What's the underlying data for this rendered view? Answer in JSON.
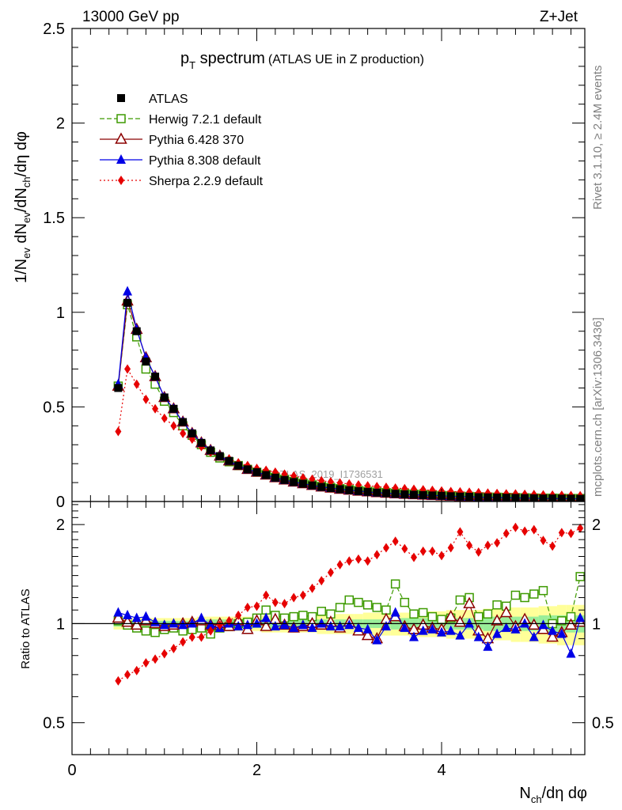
{
  "header": {
    "left": "13000 GeV pp",
    "right": "Z+Jet"
  },
  "title": {
    "main": "p",
    "sub": "T",
    "rest": " spectrum",
    "note": "(ATLAS UE in Z production)"
  },
  "watermark": "ATLAS_2019_I1736531",
  "side_labels": {
    "top": "Rivet 3.1.10, ≥ 2.4M events",
    "bottom": "mcplots.cern.ch [arXiv:1306.3436]"
  },
  "axis_titles": {
    "y_main": {
      "a": "1/N",
      "a_sub": "ev",
      "b": " dN",
      "b_sub": "ev",
      "c": "/dN",
      "c_sub": "ch",
      "d": "/dη dφ"
    },
    "y_ratio": "Ratio to ATLAS",
    "x": {
      "a": "N",
      "a_sub": "ch",
      "b": "/dη dφ"
    }
  },
  "legend": [
    {
      "label": "ATLAS",
      "color": "#000000",
      "marker": "filled-square",
      "line": "none"
    },
    {
      "label": "Herwig 7.2.1 default",
      "color": "#3d9a00",
      "marker": "open-square",
      "line": "dashed"
    },
    {
      "label": "Pythia 6.428 370",
      "color": "#8b0000",
      "marker": "open-triangle",
      "line": "solid"
    },
    {
      "label": "Pythia 8.308 default",
      "color": "#0000e6",
      "marker": "filled-triangle",
      "line": "solid"
    },
    {
      "label": "Sherpa 2.2.9 default",
      "color": "#e60000",
      "marker": "filled-diamond",
      "line": "dotted"
    }
  ],
  "chart_data": [
    {
      "type": "line",
      "title": "pT spectrum (ATLAS UE in Z production)",
      "xlabel": "Nch/dη dφ",
      "ylabel": "1/Nev dNev/dNch/dη dφ",
      "xlim": [
        0,
        5.55
      ],
      "ylim": [
        0,
        2.5
      ],
      "x_ticks": [
        0,
        2,
        4
      ],
      "y_ticks": [
        0,
        0.5,
        1,
        1.5,
        2,
        2.5
      ],
      "y_tick_labels": [
        "0",
        "0.5",
        "1",
        "1.5",
        "2",
        "2.5"
      ],
      "x": [
        0.5,
        0.6,
        0.7,
        0.8,
        0.9,
        1.0,
        1.1,
        1.2,
        1.3,
        1.4,
        1.5,
        1.6,
        1.7,
        1.8,
        1.9,
        2.0,
        2.1,
        2.2,
        2.3,
        2.4,
        2.5,
        2.6,
        2.7,
        2.8,
        2.9,
        3.0,
        3.1,
        3.2,
        3.3,
        3.4,
        3.5,
        3.6,
        3.7,
        3.8,
        3.9,
        4.0,
        4.1,
        4.2,
        4.3,
        4.4,
        4.5,
        4.6,
        4.7,
        4.8,
        4.9,
        5.0,
        5.1,
        5.2,
        5.3,
        5.4,
        5.5
      ],
      "series": [
        {
          "name": "ATLAS",
          "color": "#000000",
          "values": [
            0.6,
            1.05,
            0.9,
            0.74,
            0.66,
            0.55,
            0.49,
            0.42,
            0.36,
            0.31,
            0.27,
            0.24,
            0.215,
            0.19,
            0.17,
            0.155,
            0.14,
            0.126,
            0.114,
            0.103,
            0.094,
            0.085,
            0.077,
            0.071,
            0.065,
            0.06,
            0.055,
            0.051,
            0.047,
            0.044,
            0.041,
            0.038,
            0.036,
            0.034,
            0.032,
            0.03,
            0.028,
            0.026,
            0.025,
            0.023,
            0.022,
            0.021,
            0.02,
            0.019,
            0.018,
            0.017,
            0.016,
            0.016,
            0.015,
            0.015,
            0.014
          ]
        },
        {
          "name": "Herwig 7.2.1 default",
          "color": "#3d9a00",
          "values": [
            0.61,
            1.04,
            0.87,
            0.7,
            0.62,
            0.53,
            0.47,
            0.4,
            0.35,
            0.3,
            0.26,
            0.23,
            0.21,
            0.19,
            0.17,
            0.155,
            0.142,
            0.128,
            0.117,
            0.106,
            0.097,
            0.088,
            0.08,
            0.074,
            0.068,
            0.063,
            0.058,
            0.054,
            0.05,
            0.047,
            0.044,
            0.041,
            0.039,
            0.036,
            0.034,
            0.032,
            0.03,
            0.028,
            0.027,
            0.025,
            0.024,
            0.023,
            0.022,
            0.021,
            0.02,
            0.019,
            0.018,
            0.018,
            0.017,
            0.016,
            0.016
          ]
        },
        {
          "name": "Pythia 6.428 370",
          "color": "#8b0000",
          "values": [
            0.61,
            1.06,
            0.91,
            0.76,
            0.66,
            0.55,
            0.49,
            0.42,
            0.36,
            0.31,
            0.27,
            0.24,
            0.215,
            0.19,
            0.17,
            0.155,
            0.14,
            0.126,
            0.114,
            0.103,
            0.094,
            0.085,
            0.077,
            0.071,
            0.065,
            0.06,
            0.055,
            0.051,
            0.047,
            0.044,
            0.041,
            0.038,
            0.036,
            0.034,
            0.032,
            0.03,
            0.028,
            0.026,
            0.025,
            0.023,
            0.022,
            0.021,
            0.02,
            0.019,
            0.018,
            0.017,
            0.016,
            0.016,
            0.015,
            0.015,
            0.014
          ]
        },
        {
          "name": "Pythia 8.308 default",
          "color": "#0000e6",
          "values": [
            0.62,
            1.11,
            0.91,
            0.76,
            0.66,
            0.55,
            0.49,
            0.42,
            0.36,
            0.31,
            0.27,
            0.24,
            0.215,
            0.19,
            0.17,
            0.155,
            0.14,
            0.126,
            0.114,
            0.103,
            0.094,
            0.085,
            0.077,
            0.071,
            0.065,
            0.06,
            0.055,
            0.051,
            0.047,
            0.044,
            0.041,
            0.038,
            0.036,
            0.034,
            0.032,
            0.03,
            0.028,
            0.026,
            0.025,
            0.023,
            0.022,
            0.021,
            0.02,
            0.019,
            0.018,
            0.017,
            0.016,
            0.016,
            0.015,
            0.015,
            0.014
          ]
        },
        {
          "name": "Sherpa 2.2.9 default",
          "color": "#e60000",
          "values": [
            0.37,
            0.7,
            0.62,
            0.54,
            0.49,
            0.44,
            0.4,
            0.36,
            0.33,
            0.29,
            0.26,
            0.24,
            0.225,
            0.205,
            0.19,
            0.175,
            0.165,
            0.155,
            0.145,
            0.135,
            0.125,
            0.118,
            0.11,
            0.104,
            0.098,
            0.093,
            0.088,
            0.083,
            0.079,
            0.075,
            0.071,
            0.068,
            0.065,
            0.062,
            0.059,
            0.056,
            0.053,
            0.051,
            0.049,
            0.047,
            0.045,
            0.043,
            0.041,
            0.04,
            0.038,
            0.037,
            0.035,
            0.034,
            0.033,
            0.032,
            0.031
          ]
        }
      ]
    },
    {
      "type": "line",
      "ylabel": "Ratio to ATLAS",
      "xlabel": "Nch/dη dφ",
      "xlim": [
        0,
        5.55
      ],
      "ylim": [
        0.4,
        2.35
      ],
      "y_scale": "log",
      "y_ticks": [
        0.5,
        1,
        2
      ],
      "y_tick_labels": [
        "0.5",
        "1",
        "2"
      ],
      "x_ticks": [
        0,
        2,
        4
      ],
      "x_tick_labels": [
        "0",
        "2",
        "4"
      ],
      "band_note": "ATLAS uncertainty bands (green inner, yellow outer) around 1",
      "band_inner": [
        0.02,
        0.02,
        0.02,
        0.02,
        0.02,
        0.02,
        0.02,
        0.02,
        0.02,
        0.02,
        0.03,
        0.03,
        0.03,
        0.03,
        0.03,
        0.03,
        0.03,
        0.03,
        0.03,
        0.03,
        0.03,
        0.03,
        0.03,
        0.03,
        0.03,
        0.03,
        0.03,
        0.03,
        0.03,
        0.03,
        0.04,
        0.04,
        0.04,
        0.04,
        0.04,
        0.04,
        0.04,
        0.04,
        0.04,
        0.04,
        0.05,
        0.05,
        0.05,
        0.05,
        0.05,
        0.05,
        0.06,
        0.06,
        0.06,
        0.06,
        0.06
      ],
      "band_outer": [
        0.04,
        0.04,
        0.04,
        0.04,
        0.04,
        0.04,
        0.04,
        0.04,
        0.04,
        0.05,
        0.05,
        0.05,
        0.05,
        0.05,
        0.05,
        0.05,
        0.06,
        0.06,
        0.06,
        0.06,
        0.06,
        0.06,
        0.07,
        0.07,
        0.07,
        0.07,
        0.07,
        0.08,
        0.08,
        0.08,
        0.08,
        0.08,
        0.09,
        0.09,
        0.09,
        0.09,
        0.1,
        0.1,
        0.1,
        0.1,
        0.11,
        0.11,
        0.11,
        0.12,
        0.12,
        0.12,
        0.13,
        0.13,
        0.14,
        0.14,
        0.14
      ],
      "x": [
        0.5,
        0.6,
        0.7,
        0.8,
        0.9,
        1.0,
        1.1,
        1.2,
        1.3,
        1.4,
        1.5,
        1.6,
        1.7,
        1.8,
        1.9,
        2.0,
        2.1,
        2.2,
        2.3,
        2.4,
        2.5,
        2.6,
        2.7,
        2.8,
        2.9,
        3.0,
        3.1,
        3.2,
        3.3,
        3.4,
        3.5,
        3.6,
        3.7,
        3.8,
        3.9,
        4.0,
        4.1,
        4.2,
        4.3,
        4.4,
        4.5,
        4.6,
        4.7,
        4.8,
        4.9,
        5.0,
        5.1,
        5.2,
        5.3,
        5.4,
        5.5
      ],
      "series": [
        {
          "name": "Herwig 7.2.1 default",
          "color": "#3d9a00",
          "values": [
            1.02,
            0.99,
            0.97,
            0.95,
            0.94,
            0.96,
            0.97,
            0.95,
            0.96,
            0.97,
            0.93,
            0.97,
            0.98,
            1.0,
            1.01,
            1.04,
            1.1,
            1.06,
            1.04,
            1.05,
            1.06,
            1.05,
            1.09,
            1.07,
            1.12,
            1.18,
            1.16,
            1.14,
            1.12,
            1.1,
            1.32,
            1.16,
            1.07,
            1.08,
            1.05,
            1.03,
            1.04,
            1.18,
            1.2,
            1.05,
            1.07,
            1.14,
            1.13,
            1.22,
            1.2,
            1.23,
            1.26,
            1.0,
            1.02,
            1.05,
            1.39
          ]
        },
        {
          "name": "Pythia 6.428 370",
          "color": "#8b0000",
          "values": [
            1.04,
            1.01,
            0.99,
            1.02,
            1.0,
            0.98,
            0.99,
            1.0,
            1.01,
            1.02,
            0.99,
            1.0,
            0.98,
            1.02,
            0.96,
            1.02,
            0.98,
            1.03,
            0.99,
            0.97,
            0.98,
            1.0,
            0.99,
            1.01,
            0.97,
            1.01,
            0.95,
            0.92,
            0.9,
            1.03,
            1.05,
            0.98,
            0.96,
            0.99,
            0.97,
            0.96,
            1.05,
            1.01,
            1.15,
            0.95,
            0.9,
            1.02,
            1.08,
            0.98,
            1.03,
            0.99,
            0.96,
            0.91,
            0.94,
            0.99,
            1.01
          ]
        },
        {
          "name": "Pythia 8.308 default",
          "color": "#0000e6",
          "values": [
            1.08,
            1.06,
            1.04,
            1.05,
            1.01,
            0.99,
            1.0,
            0.99,
            1.0,
            1.04,
            0.99,
            0.97,
            1.0,
            0.98,
            0.99,
            1.0,
            1.04,
            0.98,
            0.99,
            0.97,
            0.99,
            0.97,
            1.0,
            0.98,
            0.98,
            0.99,
            0.97,
            0.96,
            0.89,
            0.98,
            1.08,
            0.97,
            0.91,
            0.95,
            0.96,
            0.94,
            0.95,
            0.92,
            1.0,
            0.91,
            0.85,
            0.93,
            0.97,
            0.96,
            1.0,
            0.91,
            0.99,
            0.95,
            0.93,
            0.81,
            1.04
          ]
        },
        {
          "name": "Sherpa 2.2.9 default",
          "color": "#e60000",
          "values": [
            0.67,
            0.7,
            0.72,
            0.76,
            0.78,
            0.81,
            0.84,
            0.88,
            0.91,
            0.91,
            0.95,
            0.99,
            1.02,
            1.06,
            1.12,
            1.13,
            1.22,
            1.16,
            1.15,
            1.2,
            1.22,
            1.28,
            1.35,
            1.43,
            1.51,
            1.55,
            1.57,
            1.55,
            1.62,
            1.7,
            1.78,
            1.69,
            1.59,
            1.66,
            1.66,
            1.61,
            1.7,
            1.9,
            1.73,
            1.65,
            1.73,
            1.76,
            1.88,
            1.96,
            1.91,
            1.93,
            1.79,
            1.72,
            1.89,
            1.88,
            1.95
          ]
        }
      ]
    }
  ]
}
